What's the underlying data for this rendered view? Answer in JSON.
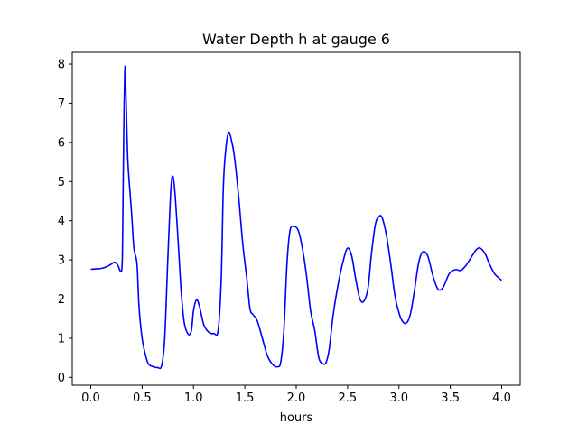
{
  "chart_data": {
    "type": "line",
    "title": "Water Depth h at gauge 6",
    "xlabel": "hours",
    "ylabel": "",
    "xlim": [
      -0.18,
      4.18
    ],
    "ylim": [
      -0.2,
      8.3
    ],
    "xticks": [
      0.0,
      0.5,
      1.0,
      1.5,
      2.0,
      2.5,
      3.0,
      3.5,
      4.0
    ],
    "xtick_labels": [
      "0.0",
      "0.5",
      "1.0",
      "1.5",
      "2.0",
      "2.5",
      "3.0",
      "3.5",
      "4.0"
    ],
    "yticks": [
      0,
      1,
      2,
      3,
      4,
      5,
      6,
      7,
      8
    ],
    "ytick_labels": [
      "0",
      "1",
      "2",
      "3",
      "4",
      "5",
      "6",
      "7",
      "8"
    ],
    "grid": false,
    "legend": "none",
    "series": [
      {
        "color": "#0000ff",
        "points": [
          [
            0.0,
            2.76
          ],
          [
            0.05,
            2.77
          ],
          [
            0.1,
            2.78
          ],
          [
            0.15,
            2.82
          ],
          [
            0.2,
            2.89
          ],
          [
            0.23,
            2.94
          ],
          [
            0.26,
            2.88
          ],
          [
            0.3,
            2.72
          ],
          [
            0.31,
            3.5
          ],
          [
            0.32,
            6.0
          ],
          [
            0.333,
            7.92
          ],
          [
            0.345,
            7.0
          ],
          [
            0.36,
            5.6
          ],
          [
            0.38,
            4.8
          ],
          [
            0.4,
            4.1
          ],
          [
            0.42,
            3.3
          ],
          [
            0.45,
            2.9
          ],
          [
            0.47,
            1.8
          ],
          [
            0.5,
            1.0
          ],
          [
            0.53,
            0.6
          ],
          [
            0.56,
            0.35
          ],
          [
            0.6,
            0.28
          ],
          [
            0.65,
            0.25
          ],
          [
            0.69,
            0.3
          ],
          [
            0.72,
            1.0
          ],
          [
            0.75,
            3.0
          ],
          [
            0.78,
            4.8
          ],
          [
            0.8,
            5.13
          ],
          [
            0.82,
            4.7
          ],
          [
            0.85,
            3.5
          ],
          [
            0.88,
            2.2
          ],
          [
            0.91,
            1.4
          ],
          [
            0.95,
            1.1
          ],
          [
            0.98,
            1.2
          ],
          [
            1.0,
            1.7
          ],
          [
            1.03,
            1.98
          ],
          [
            1.06,
            1.8
          ],
          [
            1.1,
            1.35
          ],
          [
            1.15,
            1.15
          ],
          [
            1.2,
            1.12
          ],
          [
            1.24,
            1.2
          ],
          [
            1.27,
            2.5
          ],
          [
            1.29,
            4.8
          ],
          [
            1.31,
            5.7
          ],
          [
            1.34,
            6.25
          ],
          [
            1.37,
            6.05
          ],
          [
            1.4,
            5.6
          ],
          [
            1.44,
            4.6
          ],
          [
            1.48,
            3.4
          ],
          [
            1.52,
            2.5
          ],
          [
            1.55,
            1.75
          ],
          [
            1.58,
            1.6
          ],
          [
            1.62,
            1.45
          ],
          [
            1.67,
            1.0
          ],
          [
            1.72,
            0.55
          ],
          [
            1.77,
            0.33
          ],
          [
            1.82,
            0.27
          ],
          [
            1.85,
            0.4
          ],
          [
            1.88,
            1.2
          ],
          [
            1.91,
            2.9
          ],
          [
            1.94,
            3.75
          ],
          [
            1.98,
            3.85
          ],
          [
            2.02,
            3.75
          ],
          [
            2.06,
            3.3
          ],
          [
            2.1,
            2.6
          ],
          [
            2.14,
            1.7
          ],
          [
            2.18,
            1.2
          ],
          [
            2.22,
            0.5
          ],
          [
            2.26,
            0.35
          ],
          [
            2.29,
            0.38
          ],
          [
            2.32,
            0.7
          ],
          [
            2.36,
            1.6
          ],
          [
            2.41,
            2.4
          ],
          [
            2.46,
            3.0
          ],
          [
            2.5,
            3.3
          ],
          [
            2.54,
            3.1
          ],
          [
            2.58,
            2.5
          ],
          [
            2.62,
            2.0
          ],
          [
            2.66,
            1.95
          ],
          [
            2.7,
            2.3
          ],
          [
            2.73,
            3.1
          ],
          [
            2.77,
            3.9
          ],
          [
            2.81,
            4.12
          ],
          [
            2.84,
            4.05
          ],
          [
            2.88,
            3.6
          ],
          [
            2.92,
            2.9
          ],
          [
            2.96,
            2.1
          ],
          [
            3.0,
            1.65
          ],
          [
            3.03,
            1.45
          ],
          [
            3.07,
            1.38
          ],
          [
            3.11,
            1.6
          ],
          [
            3.15,
            2.2
          ],
          [
            3.19,
            2.9
          ],
          [
            3.23,
            3.2
          ],
          [
            3.28,
            3.1
          ],
          [
            3.33,
            2.6
          ],
          [
            3.38,
            2.25
          ],
          [
            3.43,
            2.3
          ],
          [
            3.49,
            2.65
          ],
          [
            3.55,
            2.75
          ],
          [
            3.6,
            2.73
          ],
          [
            3.65,
            2.85
          ],
          [
            3.7,
            3.05
          ],
          [
            3.75,
            3.25
          ],
          [
            3.79,
            3.3
          ],
          [
            3.84,
            3.15
          ],
          [
            3.88,
            2.9
          ],
          [
            3.93,
            2.65
          ],
          [
            3.98,
            2.52
          ],
          [
            4.0,
            2.48
          ]
        ]
      }
    ]
  }
}
